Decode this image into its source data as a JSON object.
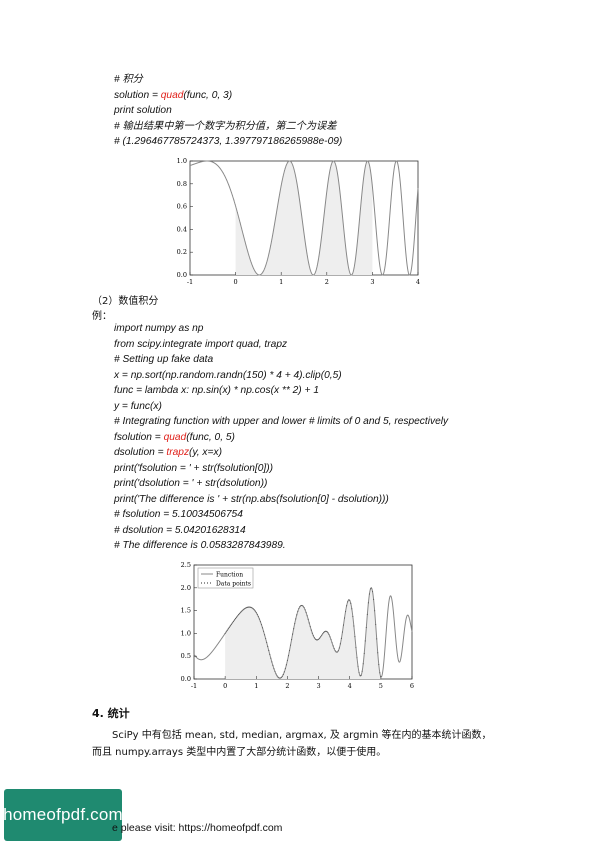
{
  "code_block_1": [
    [
      {
        "t": "# 积分"
      }
    ],
    [
      {
        "t": "solution = "
      },
      {
        "t": "quad",
        "red": true
      },
      {
        "t": "(func, 0, 3)"
      }
    ],
    [
      {
        "t": "print solution"
      }
    ],
    [
      {
        "t": "# 输出结果中第一个数字为积分值，第二个为误差"
      }
    ],
    [
      {
        "t": "# (1.296467785724373, 1.397797186265988e-09)"
      }
    ]
  ],
  "section_2_title": "（2）数值积分",
  "example_label": "例：",
  "code_block_2": [
    [
      {
        "t": "import numpy as np"
      }
    ],
    [
      {
        "t": "from scipy.integrate import quad, trapz"
      }
    ],
    [
      {
        "t": "# Setting up fake data"
      }
    ],
    [
      {
        "t": "x = np.sort(np.random.randn(150) * 4 + 4).clip(0,5)"
      }
    ],
    [
      {
        "t": "func = lambda x: np.sin(x) * np.cos(x ** 2) + 1"
      }
    ],
    [
      {
        "t": "y = func(x)"
      }
    ],
    [
      {
        "t": "# Integrating function with upper and lower # limits of 0 and 5, respectively"
      }
    ],
    [
      {
        "t": "fsolution = "
      },
      {
        "t": "quad",
        "red": true
      },
      {
        "t": "(func, 0, 5)"
      }
    ],
    [
      {
        "t": "dsolution = "
      },
      {
        "t": "trapz",
        "red": true
      },
      {
        "t": "(y, x=x)"
      }
    ],
    [
      {
        "t": "print('fsolution = ' + str(fsolution[0]))"
      }
    ],
    [
      {
        "t": "print('dsolution = ' + str(dsolution))"
      }
    ],
    [
      {
        "t": "print('The difference is ' + str(np.abs(fsolution[0] - dsolution)))"
      }
    ],
    [
      {
        "t": "# fsolution = 5.10034506754"
      }
    ],
    [
      {
        "t": "# dsolution = 5.04201628314"
      }
    ],
    [
      {
        "t": "# The difference is 0.0583287843989."
      }
    ]
  ],
  "section_4_heading": "4. 统计",
  "paragraph_lines": [
    "SciPy 中有包括 mean, std, median, argmax, 及 argmin 等在内的基本统计函数，",
    "而且 numpy.arrays 类型中内置了大部分统计函数，以便于使用。"
  ],
  "logo_text": "homeofpdf.com",
  "footer_text": "e please visit: https://homeofpdf.com",
  "colors": {
    "code_highlight": "#e0201a",
    "logo_bg": "#1f8a70",
    "curve": "#888888",
    "fill": "#eeeeee"
  },
  "chart_data": [
    {
      "type": "area",
      "function": "cos(x^2)^2 style oscillation, shaded integral from 0 to 3",
      "xlim": [
        -1,
        4
      ],
      "ylim": [
        0.0,
        1.0
      ],
      "xticks": [
        "-1",
        "0",
        "1",
        "2",
        "3",
        "4"
      ],
      "yticks": [
        "0.0",
        "0.2",
        "0.4",
        "0.6",
        "0.8",
        "1.0"
      ],
      "shaded_range": [
        0,
        3
      ]
    },
    {
      "type": "line",
      "function": "sin(x)*cos(x^2)+1, shaded integral from 0 to 5",
      "xlim": [
        -1,
        6
      ],
      "ylim": [
        0.0,
        2.5
      ],
      "xticks": [
        "-1",
        "0",
        "1",
        "2",
        "3",
        "4",
        "5",
        "6"
      ],
      "yticks": [
        "0.0",
        "0.5",
        "1.0",
        "1.5",
        "2.0",
        "2.5"
      ],
      "shaded_range": [
        0,
        5
      ],
      "legend": [
        "Function",
        "Data points"
      ],
      "legend_position": "top-left"
    }
  ]
}
